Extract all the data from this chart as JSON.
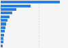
{
  "values": [
    3100,
    1580,
    820,
    590,
    450,
    360,
    290,
    250,
    210,
    185,
    160,
    130,
    100
  ],
  "bar_color": "#2b7de0",
  "background_color": "#f5f5f5",
  "plot_bg_color": "#f5f5f5",
  "grid_color": "#cccccc",
  "xmax": 3500,
  "num_bars": 13
}
